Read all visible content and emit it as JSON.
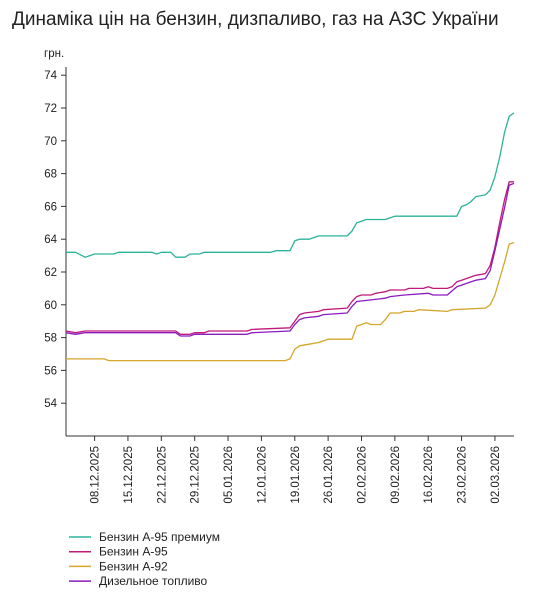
{
  "title": "Динаміка цін на бензин, дизпаливо, газ на АЗС України",
  "chart_data": {
    "type": "line",
    "title": "Динаміка цін на бензин, дизпаливо, газ на АЗС України",
    "ylabel": "грн.",
    "xlabel": "",
    "ylim": [
      52,
      74.5
    ],
    "yticks": [
      54,
      56,
      58,
      60,
      62,
      64,
      66,
      68,
      70,
      72,
      74
    ],
    "x_range": [
      "2025-12-02",
      "2026-03-06"
    ],
    "xticks": [
      "08.12.2025",
      "15.12.2025",
      "22.12.2025",
      "29.12.2025",
      "05.01.2026",
      "12.01.2026",
      "19.01.2026",
      "26.01.2026",
      "02.02.2026",
      "09.02.2026",
      "16.02.2026",
      "23.02.2026",
      "02.03.2026"
    ],
    "grid": false,
    "legend_position": "bottom-left",
    "series": [
      {
        "name": "Бензин А-95 премиум",
        "color": "#2db39a",
        "points": [
          [
            "2025-12-02",
            63.2
          ],
          [
            "2025-12-04",
            63.2
          ],
          [
            "2025-12-06",
            62.9
          ],
          [
            "2025-12-08",
            63.1
          ],
          [
            "2025-12-12",
            63.1
          ],
          [
            "2025-12-13",
            63.2
          ],
          [
            "2025-12-20",
            63.2
          ],
          [
            "2025-12-21",
            63.1
          ],
          [
            "2025-12-22",
            63.2
          ],
          [
            "2025-12-24",
            63.2
          ],
          [
            "2025-12-25",
            62.9
          ],
          [
            "2025-12-27",
            62.9
          ],
          [
            "2025-12-28",
            63.1
          ],
          [
            "2025-12-30",
            63.1
          ],
          [
            "2025-12-31",
            63.2
          ],
          [
            "2026-01-14",
            63.2
          ],
          [
            "2026-01-15",
            63.3
          ],
          [
            "2026-01-18",
            63.3
          ],
          [
            "2026-01-19",
            63.9
          ],
          [
            "2026-01-20",
            64.0
          ],
          [
            "2026-01-22",
            64.0
          ],
          [
            "2026-01-23",
            64.1
          ],
          [
            "2026-01-24",
            64.2
          ],
          [
            "2026-01-30",
            64.2
          ],
          [
            "2026-01-31",
            64.5
          ],
          [
            "2026-02-01",
            65.0
          ],
          [
            "2026-02-02",
            65.1
          ],
          [
            "2026-02-03",
            65.2
          ],
          [
            "2026-02-07",
            65.2
          ],
          [
            "2026-02-09",
            65.4
          ],
          [
            "2026-02-22",
            65.4
          ],
          [
            "2026-02-23",
            66.0
          ],
          [
            "2026-02-24",
            66.1
          ],
          [
            "2026-02-25",
            66.3
          ],
          [
            "2026-02-26",
            66.6
          ],
          [
            "2026-02-28",
            66.7
          ],
          [
            "2026-03-01",
            67.0
          ],
          [
            "2026-03-02",
            67.8
          ],
          [
            "2026-03-03",
            69.0
          ],
          [
            "2026-03-04",
            70.5
          ],
          [
            "2026-03-05",
            71.5
          ],
          [
            "2026-03-06",
            71.7
          ]
        ]
      },
      {
        "name": "Бензин А-95",
        "color": "#c2187a",
        "points": [
          [
            "2025-12-02",
            58.4
          ],
          [
            "2025-12-04",
            58.3
          ],
          [
            "2025-12-06",
            58.4
          ],
          [
            "2025-12-25",
            58.4
          ],
          [
            "2025-12-26",
            58.2
          ],
          [
            "2025-12-28",
            58.2
          ],
          [
            "2025-12-29",
            58.3
          ],
          [
            "2025-12-31",
            58.3
          ],
          [
            "2026-01-01",
            58.4
          ],
          [
            "2026-01-09",
            58.4
          ],
          [
            "2026-01-10",
            58.5
          ],
          [
            "2026-01-18",
            58.6
          ],
          [
            "2026-01-19",
            59.0
          ],
          [
            "2026-01-20",
            59.4
          ],
          [
            "2026-01-21",
            59.5
          ],
          [
            "2026-01-24",
            59.6
          ],
          [
            "2026-01-25",
            59.7
          ],
          [
            "2026-01-30",
            59.8
          ],
          [
            "2026-01-31",
            60.2
          ],
          [
            "2026-02-01",
            60.5
          ],
          [
            "2026-02-02",
            60.6
          ],
          [
            "2026-02-04",
            60.6
          ],
          [
            "2026-02-05",
            60.7
          ],
          [
            "2026-02-07",
            60.8
          ],
          [
            "2026-02-08",
            60.9
          ],
          [
            "2026-02-11",
            60.9
          ],
          [
            "2026-02-12",
            61.0
          ],
          [
            "2026-02-15",
            61.0
          ],
          [
            "2026-02-16",
            61.1
          ],
          [
            "2026-02-17",
            61.0
          ],
          [
            "2026-02-20",
            61.0
          ],
          [
            "2026-02-21",
            61.1
          ],
          [
            "2026-02-22",
            61.4
          ],
          [
            "2026-02-23",
            61.5
          ],
          [
            "2026-02-25",
            61.7
          ],
          [
            "2026-02-26",
            61.8
          ],
          [
            "2026-02-28",
            61.9
          ],
          [
            "2026-03-01",
            62.4
          ],
          [
            "2026-03-02",
            63.5
          ],
          [
            "2026-03-03",
            65.0
          ],
          [
            "2026-03-04",
            66.4
          ],
          [
            "2026-03-05",
            67.5
          ],
          [
            "2026-03-06",
            67.5
          ]
        ]
      },
      {
        "name": "Бензин А-92",
        "color": "#d4a62a",
        "points": [
          [
            "2025-12-02",
            56.7
          ],
          [
            "2025-12-10",
            56.7
          ],
          [
            "2025-12-11",
            56.6
          ],
          [
            "2026-01-17",
            56.6
          ],
          [
            "2026-01-18",
            56.7
          ],
          [
            "2026-01-19",
            57.3
          ],
          [
            "2026-01-20",
            57.5
          ],
          [
            "2026-01-22",
            57.6
          ],
          [
            "2026-01-24",
            57.7
          ],
          [
            "2026-01-26",
            57.9
          ],
          [
            "2026-01-31",
            57.9
          ],
          [
            "2026-02-01",
            58.7
          ],
          [
            "2026-02-02",
            58.8
          ],
          [
            "2026-02-03",
            58.9
          ],
          [
            "2026-02-04",
            58.8
          ],
          [
            "2026-02-06",
            58.8
          ],
          [
            "2026-02-07",
            59.1
          ],
          [
            "2026-02-08",
            59.5
          ],
          [
            "2026-02-10",
            59.5
          ],
          [
            "2026-02-11",
            59.6
          ],
          [
            "2026-02-13",
            59.6
          ],
          [
            "2026-02-14",
            59.7
          ],
          [
            "2026-02-20",
            59.6
          ],
          [
            "2026-02-21",
            59.7
          ],
          [
            "2026-02-28",
            59.8
          ],
          [
            "2026-03-01",
            60.0
          ],
          [
            "2026-03-02",
            60.6
          ],
          [
            "2026-03-03",
            61.6
          ],
          [
            "2026-03-04",
            62.6
          ],
          [
            "2026-03-05",
            63.7
          ],
          [
            "2026-03-06",
            63.8
          ]
        ]
      },
      {
        "name": "Дизельное топливо",
        "color": "#8a1bbf",
        "points": [
          [
            "2025-12-02",
            58.3
          ],
          [
            "2025-12-04",
            58.2
          ],
          [
            "2025-12-06",
            58.3
          ],
          [
            "2025-12-25",
            58.3
          ],
          [
            "2025-12-26",
            58.1
          ],
          [
            "2025-12-28",
            58.1
          ],
          [
            "2025-12-29",
            58.2
          ],
          [
            "2026-01-09",
            58.2
          ],
          [
            "2026-01-10",
            58.3
          ],
          [
            "2026-01-18",
            58.4
          ],
          [
            "2026-01-19",
            58.8
          ],
          [
            "2026-01-20",
            59.1
          ],
          [
            "2026-01-21",
            59.2
          ],
          [
            "2026-01-24",
            59.3
          ],
          [
            "2026-01-25",
            59.4
          ],
          [
            "2026-01-30",
            59.5
          ],
          [
            "2026-01-31",
            59.9
          ],
          [
            "2026-02-01",
            60.2
          ],
          [
            "2026-02-04",
            60.3
          ],
          [
            "2026-02-07",
            60.4
          ],
          [
            "2026-02-08",
            60.5
          ],
          [
            "2026-02-11",
            60.6
          ],
          [
            "2026-02-16",
            60.7
          ],
          [
            "2026-02-17",
            60.6
          ],
          [
            "2026-02-20",
            60.6
          ],
          [
            "2026-02-22",
            61.1
          ],
          [
            "2026-02-23",
            61.2
          ],
          [
            "2026-02-25",
            61.4
          ],
          [
            "2026-02-26",
            61.5
          ],
          [
            "2026-02-28",
            61.6
          ],
          [
            "2026-03-01",
            62.1
          ],
          [
            "2026-03-02",
            63.3
          ],
          [
            "2026-03-03",
            64.6
          ],
          [
            "2026-03-04",
            65.9
          ],
          [
            "2026-03-05",
            67.3
          ],
          [
            "2026-03-06",
            67.4
          ]
        ]
      }
    ]
  }
}
